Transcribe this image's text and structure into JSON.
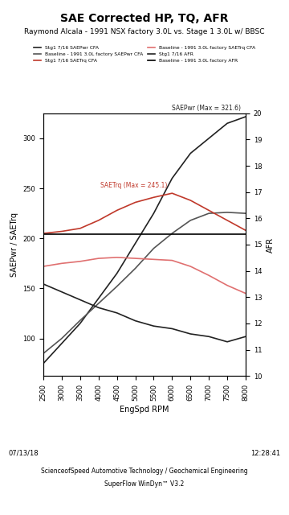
{
  "chart_data": {
    "type": "line",
    "title": "SAE Corrected HP, TQ, AFR",
    "subtitle": "Raymond Alcala - 1991 NSX factory 3.0L vs. Stage 1 3.0L w/ BBSC",
    "x_label": "EngSpd RPM",
    "y_label": "SAEPwr / SAETrq",
    "y2_label": "AFR",
    "x": [
      2500,
      3000,
      3500,
      4000,
      4500,
      5000,
      5500,
      6000,
      6500,
      7000,
      7500,
      8000
    ],
    "xlim": [
      2500,
      8000
    ],
    "xticks": [
      2500,
      3000,
      3500,
      4000,
      4500,
      5000,
      5500,
      6000,
      6500,
      7000,
      7500,
      8000
    ],
    "ylim": [
      62.5,
      325
    ],
    "yticks": [
      100,
      150,
      200,
      250,
      300
    ],
    "y2lim": [
      10,
      20
    ],
    "y2ticks": [
      10,
      11,
      12,
      13,
      14,
      15,
      16,
      17,
      18,
      19,
      20
    ],
    "grid": false,
    "legend": "top",
    "series": [
      {
        "name": "Stg1 7/16 SAEPwr CFA",
        "color": "#222222",
        "line_style": "solid",
        "annotation": "SAEPwr (Max = 321.6)",
        "values": [
          75,
          95,
          115,
          140,
          165,
          195,
          225,
          260,
          285,
          300,
          315,
          321.6
        ]
      },
      {
        "name": "Baseline - 1991 3.0L factory SAEPwr CFA",
        "color": "#555555",
        "line_style": "solid",
        "values": [
          85,
          100,
          118,
          135,
          152,
          170,
          190,
          205,
          218,
          225,
          226,
          225
        ]
      },
      {
        "name": "Stg1 7/16 SAETrq CFA",
        "color": "#c0392b",
        "line_style": "solid",
        "annotation": "SAETrq (Max = 245.1)",
        "values": [
          205,
          207,
          210,
          218,
          228,
          236,
          241,
          245.1,
          238,
          228,
          218,
          208
        ]
      },
      {
        "name": "Baseline - 1991 3.0L factory SAETrq CFA",
        "color": "#e07070",
        "line_style": "solid",
        "values": [
          172,
          175,
          177,
          180,
          181,
          180,
          179,
          178,
          172,
          163,
          153,
          145
        ]
      },
      {
        "name": "Stg1 7/16 AFR",
        "color": "#222222",
        "line_style": "solid",
        "axis": "y2",
        "values": [
          13.5,
          13.2,
          12.9,
          12.6,
          12.4,
          12.1,
          11.9,
          11.8,
          11.6,
          11.5,
          11.3,
          11.5
        ]
      },
      {
        "name": "Baseline - 1991 3.0L factory AFR",
        "color": "#000000",
        "line_style": "solid",
        "axis": "y2",
        "values": [
          15.4,
          15.4,
          15.4,
          15.4,
          15.4,
          15.4,
          15.4,
          15.4,
          15.4,
          15.4,
          15.4,
          15.4
        ]
      }
    ],
    "footer": {
      "date": "07/13/18",
      "time": "12:28:41",
      "company": "ScienceofSpeed Automotive Technology / Geochemical Engineering",
      "software": "SuperFlow WinDyn™ V3.2"
    }
  }
}
